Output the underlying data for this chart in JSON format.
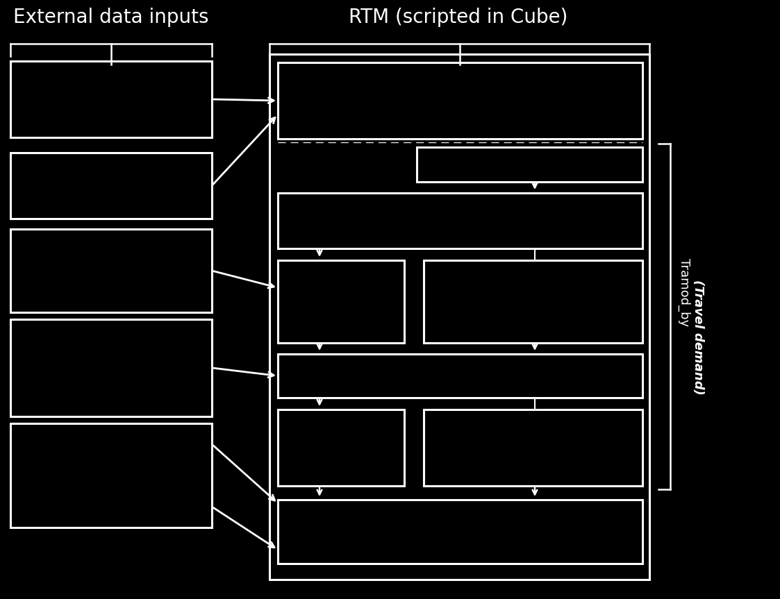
{
  "bg_color": "#000000",
  "fg_color": "#ffffff",
  "title_left": "External data inputs",
  "title_right": "RTM (scripted in Cube)",
  "title_fontsize": 20,
  "label_tramod": "Tramod_by",
  "label_travel": "(Travel demand)"
}
